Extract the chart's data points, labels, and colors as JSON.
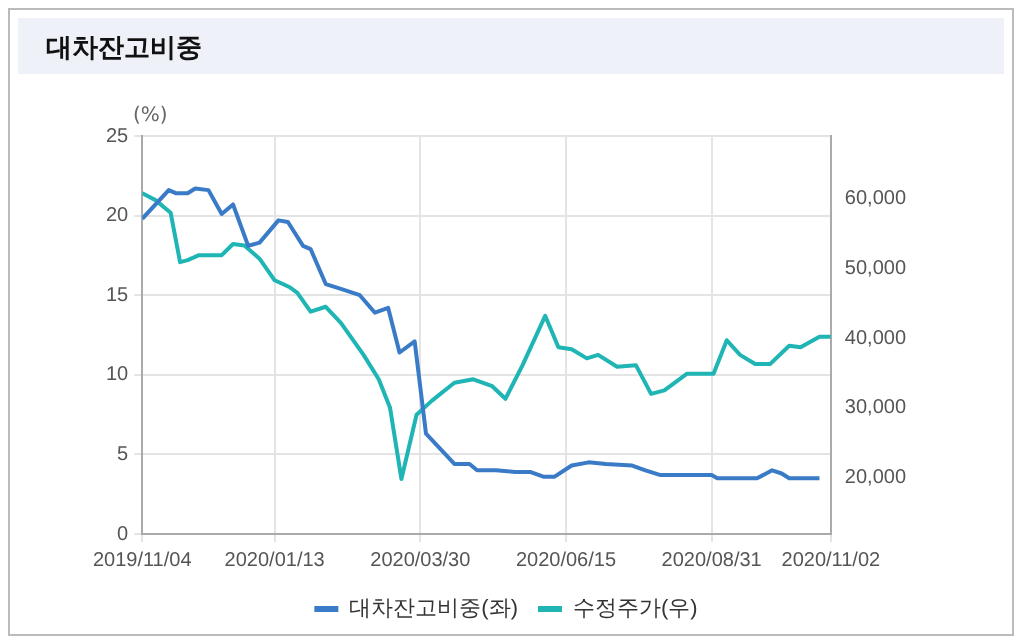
{
  "chart_data": {
    "type": "line",
    "title": "대차잔고비중",
    "ylabel": "(%)",
    "xlim": [
      "2019-11-04",
      "2020-11-02"
    ],
    "xticks": [
      {
        "value": "2019-11-04",
        "label": "2019/11/04"
      },
      {
        "value": "2020-01-13",
        "label": "2020/01/13"
      },
      {
        "value": "2020-03-30",
        "label": "2020/03/30"
      },
      {
        "value": "2020-06-15",
        "label": "2020/06/15"
      },
      {
        "value": "2020-08-31",
        "label": "2020/08/31"
      },
      {
        "value": "2020-11-02",
        "label": "2020/11/02"
      }
    ],
    "ylim": [
      0,
      25
    ],
    "yticks": [
      0,
      5,
      10,
      15,
      20,
      25
    ],
    "y2lim": [
      11900,
      69000
    ],
    "y2ticks": [
      {
        "value": 20000,
        "label": "20,000"
      },
      {
        "value": 30000,
        "label": "30,000"
      },
      {
        "value": 40000,
        "label": "40,000"
      },
      {
        "value": 50000,
        "label": "50,000"
      },
      {
        "value": 60000,
        "label": "60,000"
      }
    ],
    "grid": true,
    "legend": "bottom",
    "marker": "none",
    "line_style": "solid",
    "series": [
      {
        "name": "대차잔고비중(좌)",
        "color": "#3a7bc8",
        "x": [
          "2019-11-04",
          "2019-11-18",
          "2019-11-22",
          "2019-11-28",
          "2019-12-02",
          "2019-12-09",
          "2019-12-16",
          "2019-12-22",
          "2019-12-30",
          "2020-01-05",
          "2020-01-15",
          "2020-01-20",
          "2020-01-28",
          "2020-02-01",
          "2020-02-09",
          "2020-02-17",
          "2020-02-27",
          "2020-03-06",
          "2020-03-13",
          "2020-03-19",
          "2020-03-27",
          "2020-04-02",
          "2020-04-17",
          "2020-04-25",
          "2020-04-29",
          "2020-05-09",
          "2020-05-19",
          "2020-05-27",
          "2020-06-03",
          "2020-06-09",
          "2020-06-18",
          "2020-06-27",
          "2020-07-06",
          "2020-07-20",
          "2020-07-27",
          "2020-08-04",
          "2020-08-31",
          "2020-09-03",
          "2020-09-24",
          "2020-10-02",
          "2020-10-07",
          "2020-10-11",
          "2020-10-27"
        ],
        "values": [
          19.8,
          21.6,
          21.4,
          21.4,
          21.7,
          21.6,
          20.1,
          20.7,
          18.1,
          18.3,
          19.7,
          19.6,
          18.1,
          17.9,
          15.7,
          15.4,
          15.0,
          13.9,
          14.2,
          11.4,
          12.1,
          6.3,
          4.4,
          4.4,
          4.0,
          4.0,
          3.9,
          3.9,
          3.6,
          3.6,
          4.3,
          4.5,
          4.4,
          4.3,
          4.0,
          3.7,
          3.7,
          3.5,
          3.5,
          4.0,
          3.8,
          3.5,
          3.5
        ]
      },
      {
        "name": "수정주가(우)",
        "color": "#1fb5b5",
        "axis": "y2",
        "x": [
          "2019-11-04",
          "2019-11-11",
          "2019-11-19",
          "2019-11-24",
          "2019-11-28",
          "2019-12-04",
          "2019-12-16",
          "2019-12-22",
          "2019-12-28",
          "2020-01-05",
          "2020-01-13",
          "2020-01-21",
          "2020-01-25",
          "2020-02-01",
          "2020-02-09",
          "2020-02-17",
          "2020-02-29",
          "2020-03-08",
          "2020-03-14",
          "2020-03-20",
          "2020-03-28",
          "2020-04-05",
          "2020-04-17",
          "2020-04-27",
          "2020-05-07",
          "2020-05-14",
          "2020-05-23",
          "2020-06-04",
          "2020-06-11",
          "2020-06-18",
          "2020-06-26",
          "2020-07-02",
          "2020-07-12",
          "2020-07-22",
          "2020-07-30",
          "2020-08-06",
          "2020-08-18",
          "2020-09-01",
          "2020-09-08",
          "2020-09-15",
          "2020-09-23",
          "2020-10-01",
          "2020-10-11",
          "2020-10-17",
          "2020-10-27",
          "2020-11-02"
        ],
        "values": [
          60800,
          59800,
          58000,
          50900,
          51200,
          51900,
          51900,
          53500,
          53300,
          51400,
          48300,
          47300,
          46500,
          43800,
          44500,
          42200,
          37600,
          34100,
          30000,
          19800,
          29000,
          31000,
          33600,
          34100,
          33100,
          31300,
          36100,
          43200,
          38700,
          38400,
          37100,
          37600,
          35900,
          36100,
          32000,
          32500,
          34900,
          34900,
          39700,
          37600,
          36300,
          36300,
          38900,
          38700,
          40200,
          40200
        ]
      }
    ]
  }
}
